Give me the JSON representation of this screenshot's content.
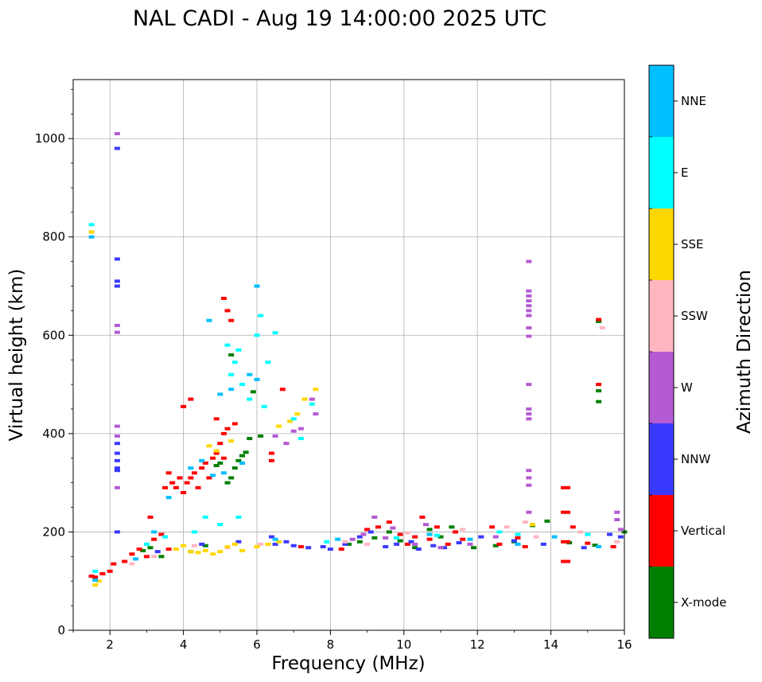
{
  "chart_data": {
    "type": "scatter",
    "title": "NAL CADI - Aug 19 14:00:00 2025 UTC",
    "xlabel": "Frequency (MHz)",
    "ylabel": "Virtual height (km)",
    "xlim": [
      1,
      16
    ],
    "ylim": [
      0,
      1120
    ],
    "xticks": [
      2,
      4,
      6,
      8,
      10,
      12,
      14,
      16
    ],
    "yticks": [
      0,
      200,
      400,
      600,
      800,
      1000
    ],
    "grid": true,
    "colorbar": {
      "label": "Azimuth Direction",
      "position": "right",
      "categories": [
        {
          "name": "X-mode",
          "color": "#008000"
        },
        {
          "name": "Vertical",
          "color": "#ff0000"
        },
        {
          "name": "NNW",
          "color": "#3a3aff"
        },
        {
          "name": "W",
          "color": "#b45ad2"
        },
        {
          "name": "SSW",
          "color": "#ffb6c1"
        },
        {
          "name": "SSE",
          "color": "#ffd700"
        },
        {
          "name": "E",
          "color": "#00ffff"
        },
        {
          "name": "NNE",
          "color": "#00bfff"
        }
      ]
    },
    "series": [
      {
        "name": "X-mode",
        "points": [
          [
            2.9,
            162
          ],
          [
            3.1,
            168
          ],
          [
            3.4,
            150
          ],
          [
            4.2,
            160
          ],
          [
            4.6,
            172
          ],
          [
            4.9,
            335
          ],
          [
            5.0,
            340
          ],
          [
            5.2,
            300
          ],
          [
            5.3,
            310
          ],
          [
            5.4,
            330
          ],
          [
            5.5,
            345
          ],
          [
            5.6,
            355
          ],
          [
            5.7,
            362
          ],
          [
            5.6,
            340
          ],
          [
            5.8,
            390
          ],
          [
            6.1,
            395
          ],
          [
            5.3,
            560
          ],
          [
            5.9,
            485
          ],
          [
            8.5,
            175
          ],
          [
            8.8,
            180
          ],
          [
            9.2,
            188
          ],
          [
            9.6,
            200
          ],
          [
            9.9,
            182
          ],
          [
            10.3,
            168
          ],
          [
            10.7,
            205
          ],
          [
            11.0,
            190
          ],
          [
            11.3,
            210
          ],
          [
            11.9,
            168
          ],
          [
            12.5,
            172
          ],
          [
            13.0,
            180
          ],
          [
            13.5,
            213
          ],
          [
            13.9,
            222
          ],
          [
            14.5,
            178
          ],
          [
            15.2,
            173
          ],
          [
            15.3,
            487
          ],
          [
            15.3,
            465
          ],
          [
            15.3,
            628
          ],
          [
            16.0,
            200
          ]
        ]
      },
      {
        "name": "Vertical",
        "points": [
          [
            1.5,
            110
          ],
          [
            1.6,
            108
          ],
          [
            1.8,
            115
          ],
          [
            2.0,
            120
          ],
          [
            2.1,
            135
          ],
          [
            2.4,
            140
          ],
          [
            2.6,
            155
          ],
          [
            2.8,
            165
          ],
          [
            3.0,
            150
          ],
          [
            3.2,
            185
          ],
          [
            3.4,
            195
          ],
          [
            3.6,
            165
          ],
          [
            3.1,
            230
          ],
          [
            3.5,
            290
          ],
          [
            3.6,
            320
          ],
          [
            3.7,
            300
          ],
          [
            3.8,
            290
          ],
          [
            3.9,
            310
          ],
          [
            4.0,
            280
          ],
          [
            4.1,
            300
          ],
          [
            4.2,
            310
          ],
          [
            4.3,
            320
          ],
          [
            4.4,
            290
          ],
          [
            4.5,
            330
          ],
          [
            4.6,
            340
          ],
          [
            4.7,
            310
          ],
          [
            4.8,
            350
          ],
          [
            4.9,
            360
          ],
          [
            5.0,
            380
          ],
          [
            5.1,
            350
          ],
          [
            4.2,
            470
          ],
          [
            4.0,
            455
          ],
          [
            5.1,
            400
          ],
          [
            5.2,
            410
          ],
          [
            5.4,
            420
          ],
          [
            4.9,
            430
          ],
          [
            5.1,
            675
          ],
          [
            5.2,
            650
          ],
          [
            5.3,
            630
          ],
          [
            6.4,
            345
          ],
          [
            6.4,
            360
          ],
          [
            6.7,
            490
          ],
          [
            7.2,
            170
          ],
          [
            8.3,
            165
          ],
          [
            9.0,
            205
          ],
          [
            9.3,
            210
          ],
          [
            9.6,
            220
          ],
          [
            9.9,
            195
          ],
          [
            10.1,
            175
          ],
          [
            10.3,
            190
          ],
          [
            10.5,
            230
          ],
          [
            10.7,
            185
          ],
          [
            10.9,
            210
          ],
          [
            11.2,
            175
          ],
          [
            11.4,
            200
          ],
          [
            11.6,
            185
          ],
          [
            12.4,
            210
          ],
          [
            12.6,
            175
          ],
          [
            13.1,
            188
          ],
          [
            13.3,
            170
          ],
          [
            14.4,
            290
          ],
          [
            14.4,
            240
          ],
          [
            14.4,
            180
          ],
          [
            14.4,
            140
          ],
          [
            14.6,
            210
          ],
          [
            15.3,
            500
          ],
          [
            15.3,
            632
          ],
          [
            15.7,
            170
          ],
          [
            15.0,
            177
          ]
        ]
      },
      {
        "name": "NNW",
        "points": [
          [
            2.2,
            980
          ],
          [
            2.2,
            710
          ],
          [
            2.2,
            755
          ],
          [
            2.2,
            700
          ],
          [
            2.2,
            380
          ],
          [
            2.2,
            360
          ],
          [
            2.2,
            345
          ],
          [
            2.2,
            330
          ],
          [
            2.2,
            325
          ],
          [
            2.2,
            200
          ],
          [
            3.3,
            160
          ],
          [
            4.5,
            175
          ],
          [
            5.5,
            180
          ],
          [
            6.4,
            190
          ],
          [
            6.5,
            175
          ],
          [
            6.8,
            180
          ],
          [
            7.0,
            172
          ],
          [
            7.4,
            168
          ],
          [
            7.8,
            170
          ],
          [
            8.0,
            165
          ],
          [
            8.4,
            175
          ],
          [
            8.8,
            190
          ],
          [
            9.1,
            200
          ],
          [
            9.5,
            170
          ],
          [
            9.8,
            175
          ],
          [
            10.2,
            180
          ],
          [
            10.4,
            165
          ],
          [
            10.8,
            172
          ],
          [
            11.1,
            168
          ],
          [
            11.5,
            178
          ],
          [
            12.1,
            190
          ],
          [
            13.0,
            182
          ],
          [
            13.8,
            175
          ],
          [
            14.9,
            168
          ],
          [
            15.6,
            195
          ],
          [
            15.9,
            190
          ]
        ]
      },
      {
        "name": "W",
        "points": [
          [
            2.2,
            1010
          ],
          [
            2.2,
            620
          ],
          [
            2.2,
            606
          ],
          [
            2.2,
            415
          ],
          [
            2.2,
            395
          ],
          [
            2.2,
            290
          ],
          [
            6.5,
            395
          ],
          [
            6.8,
            380
          ],
          [
            7.0,
            405
          ],
          [
            7.2,
            410
          ],
          [
            7.5,
            470
          ],
          [
            7.6,
            440
          ],
          [
            8.6,
            185
          ],
          [
            8.9,
            195
          ],
          [
            9.2,
            230
          ],
          [
            9.5,
            188
          ],
          [
            9.7,
            208
          ],
          [
            10.3,
            175
          ],
          [
            10.6,
            215
          ],
          [
            11.0,
            168
          ],
          [
            11.8,
            175
          ],
          [
            12.5,
            190
          ],
          [
            13.4,
            750
          ],
          [
            13.4,
            690
          ],
          [
            13.4,
            680
          ],
          [
            13.4,
            670
          ],
          [
            13.4,
            660
          ],
          [
            13.4,
            650
          ],
          [
            13.4,
            640
          ],
          [
            13.4,
            615
          ],
          [
            13.4,
            598
          ],
          [
            13.4,
            500
          ],
          [
            13.4,
            450
          ],
          [
            13.4,
            440
          ],
          [
            13.4,
            430
          ],
          [
            13.4,
            325
          ],
          [
            13.4,
            310
          ],
          [
            13.4,
            295
          ],
          [
            13.4,
            240
          ],
          [
            15.8,
            240
          ],
          [
            15.8,
            225
          ],
          [
            15.9,
            205
          ]
        ]
      },
      {
        "name": "SSW",
        "points": [
          [
            2.6,
            135
          ],
          [
            3.2,
            150
          ],
          [
            4.3,
            172
          ],
          [
            5.2,
            168
          ],
          [
            6.1,
            175
          ],
          [
            8.4,
            180
          ],
          [
            9.0,
            175
          ],
          [
            10.1,
            198
          ],
          [
            11.6,
            205
          ],
          [
            12.8,
            210
          ],
          [
            13.3,
            220
          ],
          [
            13.6,
            190
          ],
          [
            14.8,
            200
          ],
          [
            15.4,
            615
          ],
          [
            15.8,
            180
          ]
        ]
      },
      {
        "name": "SSE",
        "points": [
          [
            1.5,
            810
          ],
          [
            1.6,
            92
          ],
          [
            1.7,
            100
          ],
          [
            3.8,
            165
          ],
          [
            4.0,
            172
          ],
          [
            4.2,
            160
          ],
          [
            4.4,
            158
          ],
          [
            4.6,
            162
          ],
          [
            4.8,
            155
          ],
          [
            5.0,
            160
          ],
          [
            5.2,
            170
          ],
          [
            5.4,
            175
          ],
          [
            5.6,
            162
          ],
          [
            6.0,
            170
          ],
          [
            6.3,
            175
          ],
          [
            6.6,
            180
          ],
          [
            4.7,
            375
          ],
          [
            4.9,
            365
          ],
          [
            5.3,
            385
          ],
          [
            6.6,
            415
          ],
          [
            6.9,
            425
          ],
          [
            7.1,
            440
          ],
          [
            7.3,
            470
          ],
          [
            7.6,
            490
          ],
          [
            13.5,
            215
          ]
        ]
      },
      {
        "name": "E",
        "points": [
          [
            1.5,
            825
          ],
          [
            1.6,
            120
          ],
          [
            3.0,
            175
          ],
          [
            3.5,
            190
          ],
          [
            4.3,
            200
          ],
          [
            4.6,
            230
          ],
          [
            5.0,
            215
          ],
          [
            5.5,
            230
          ],
          [
            5.3,
            520
          ],
          [
            5.4,
            545
          ],
          [
            5.6,
            500
          ],
          [
            5.2,
            580
          ],
          [
            5.5,
            570
          ],
          [
            5.8,
            470
          ],
          [
            6.0,
            600
          ],
          [
            6.1,
            640
          ],
          [
            6.3,
            545
          ],
          [
            6.5,
            605
          ],
          [
            6.2,
            455
          ],
          [
            7.0,
            430
          ],
          [
            7.2,
            390
          ],
          [
            7.5,
            460
          ],
          [
            7.9,
            180
          ],
          [
            9.8,
            188
          ],
          [
            10.9,
            193
          ],
          [
            12.6,
            200
          ],
          [
            13.1,
            195
          ],
          [
            15.0,
            195
          ]
        ]
      },
      {
        "name": "NNE",
        "points": [
          [
            1.5,
            800
          ],
          [
            1.6,
            102
          ],
          [
            2.7,
            145
          ],
          [
            3.2,
            200
          ],
          [
            3.6,
            270
          ],
          [
            4.2,
            330
          ],
          [
            4.5,
            345
          ],
          [
            4.8,
            315
          ],
          [
            5.1,
            320
          ],
          [
            5.6,
            340
          ],
          [
            5.3,
            490
          ],
          [
            5.0,
            480
          ],
          [
            5.8,
            520
          ],
          [
            4.7,
            630
          ],
          [
            6.0,
            700
          ],
          [
            6.0,
            510
          ],
          [
            6.5,
            185
          ],
          [
            8.2,
            185
          ],
          [
            10.7,
            195
          ],
          [
            11.8,
            185
          ],
          [
            13.1,
            175
          ],
          [
            14.1,
            190
          ],
          [
            15.3,
            170
          ]
        ]
      }
    ]
  }
}
